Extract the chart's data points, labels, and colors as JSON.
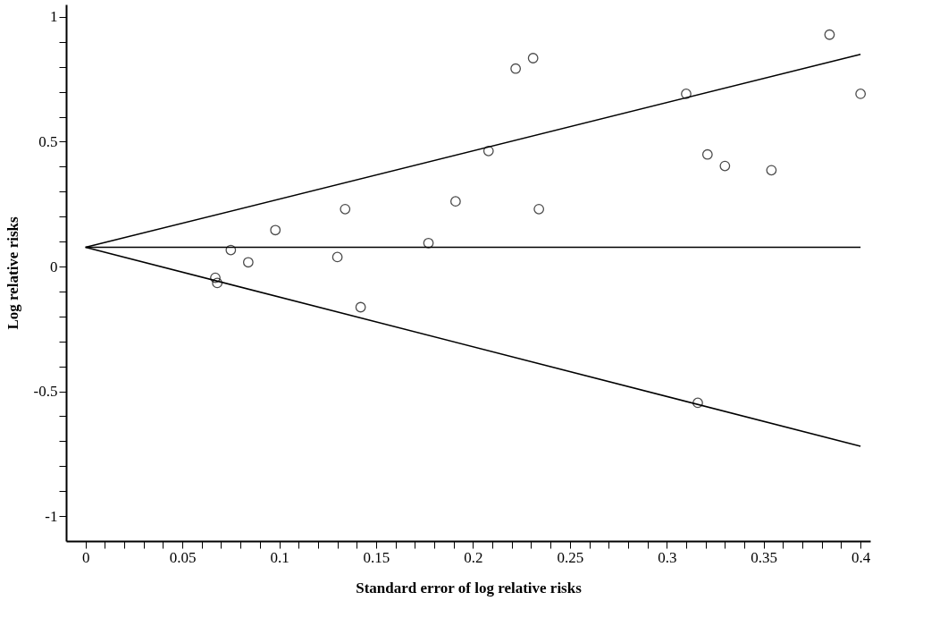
{
  "chart_data": {
    "type": "scatter",
    "xlabel": "Standard error of log relative risks",
    "ylabel": "Log relative risks",
    "xlim": [
      -0.01,
      0.405
    ],
    "ylim": [
      -1.1,
      1.05
    ],
    "xticks": [
      0,
      {
        "value": 0.01,
        "label": null
      },
      {
        "value": 0.02,
        "label": null
      },
      {
        "value": 0.03,
        "label": null
      },
      {
        "value": 0.04,
        "label": null
      },
      0.05,
      {
        "value": 0.06,
        "label": null
      },
      {
        "value": 0.07,
        "label": null
      },
      {
        "value": 0.08,
        "label": null
      },
      {
        "value": 0.09,
        "label": null
      },
      0.1,
      {
        "value": 0.11,
        "label": null
      },
      {
        "value": 0.12,
        "label": null
      },
      {
        "value": 0.13,
        "label": null
      },
      {
        "value": 0.14,
        "label": null
      },
      0.15,
      {
        "value": 0.16,
        "label": null
      },
      {
        "value": 0.17,
        "label": null
      },
      {
        "value": 0.18,
        "label": null
      },
      {
        "value": 0.19,
        "label": null
      },
      0.2,
      {
        "value": 0.21,
        "label": null
      },
      {
        "value": 0.22,
        "label": null
      },
      {
        "value": 0.23,
        "label": null
      },
      {
        "value": 0.24,
        "label": null
      },
      0.25,
      {
        "value": 0.26,
        "label": null
      },
      {
        "value": 0.27,
        "label": null
      },
      {
        "value": 0.28,
        "label": null
      },
      {
        "value": 0.29,
        "label": null
      },
      0.3,
      {
        "value": 0.31,
        "label": null
      },
      {
        "value": 0.32,
        "label": null
      },
      {
        "value": 0.33,
        "label": null
      },
      {
        "value": 0.34,
        "label": null
      },
      0.35,
      {
        "value": 0.36,
        "label": null
      },
      {
        "value": 0.37,
        "label": null
      },
      {
        "value": 0.38,
        "label": null
      },
      {
        "value": 0.39,
        "label": null
      },
      0.4
    ],
    "yticks": [
      -1,
      {
        "value": -0.9,
        "label": null
      },
      {
        "value": -0.8,
        "label": null
      },
      {
        "value": -0.7,
        "label": null
      },
      {
        "value": -0.6,
        "label": null
      },
      -0.5,
      {
        "value": -0.4,
        "label": null
      },
      {
        "value": -0.3,
        "label": null
      },
      {
        "value": -0.2,
        "label": null
      },
      {
        "value": -0.1,
        "label": null
      },
      0,
      {
        "value": 0.1,
        "label": null
      },
      {
        "value": 0.2,
        "label": null
      },
      {
        "value": 0.3,
        "label": null
      },
      {
        "value": 0.4,
        "label": null
      },
      0.5,
      {
        "value": 0.6,
        "label": null
      },
      {
        "value": 0.7,
        "label": null
      },
      {
        "value": 0.8,
        "label": null
      },
      {
        "value": 0.9,
        "label": null
      },
      1
    ],
    "grid": false,
    "series": [
      {
        "marker": "circle",
        "color": "#000000",
        "x": [
          0.067,
          0.068,
          0.075,
          0.084,
          0.098,
          0.13,
          0.134,
          0.142,
          0.177,
          0.191,
          0.208,
          0.222,
          0.231,
          0.234,
          0.31,
          0.316,
          0.321,
          0.33,
          0.354,
          0.384,
          0.4
        ],
        "values": [
          -0.045,
          -0.066,
          0.066,
          0.017,
          0.146,
          0.038,
          0.23,
          -0.163,
          0.094,
          0.261,
          0.463,
          0.793,
          0.835,
          0.23,
          0.692,
          -0.546,
          0.449,
          0.403,
          0.386,
          0.929,
          0.692
        ]
      },
      {
        "type": "line",
        "color": "#000000",
        "x": [
          0,
          0.4
        ],
        "values": [
          0.077,
          0.85
        ]
      },
      {
        "type": "line",
        "color": "#000000",
        "x": [
          0,
          0.4
        ],
        "values": [
          0.077,
          0.077
        ]
      },
      {
        "type": "line",
        "color": "#000000",
        "x": [
          0,
          0.4
        ],
        "values": [
          0.077,
          -0.72
        ]
      }
    ]
  }
}
